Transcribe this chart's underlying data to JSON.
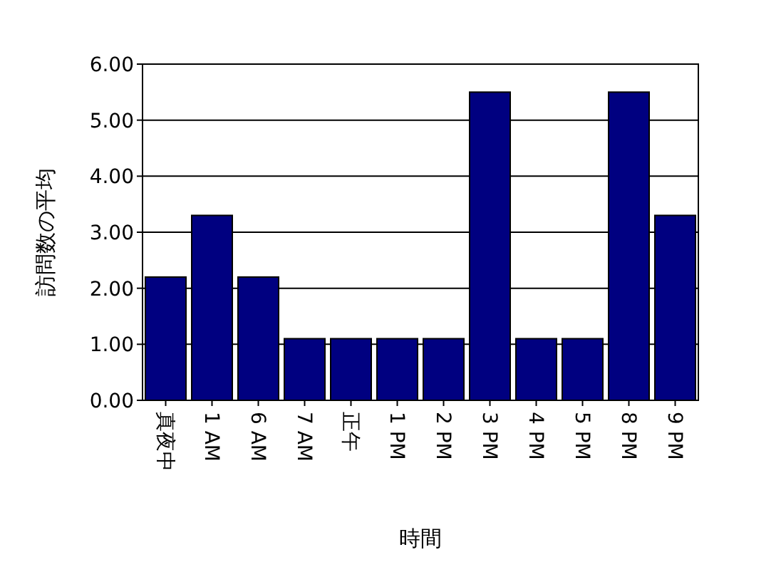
{
  "chart_data": {
    "type": "bar",
    "xlabel": "時間",
    "ylabel": "訪問数の平均",
    "categories": [
      "真夜中",
      "1 AM",
      "6 AM",
      "7 AM",
      "正午",
      "1 PM",
      "2 PM",
      "3 PM",
      "4 PM",
      "5 PM",
      "8 PM",
      "9 PM"
    ],
    "values": [
      2.2,
      3.3,
      2.2,
      1.1,
      1.1,
      1.1,
      1.1,
      5.5,
      1.1,
      1.1,
      5.5,
      3.3
    ],
    "color": "#000080",
    "ylim": [
      0,
      6
    ],
    "yticks": [
      {
        "value": 0,
        "label": "0.00"
      },
      {
        "value": 1,
        "label": "1.00"
      },
      {
        "value": 2,
        "label": "2.00"
      },
      {
        "value": 3,
        "label": "3.00"
      },
      {
        "value": 4,
        "label": "4.00"
      },
      {
        "value": 5,
        "label": "5.00"
      },
      {
        "value": 6,
        "label": "6.00"
      }
    ],
    "grid": "y"
  }
}
